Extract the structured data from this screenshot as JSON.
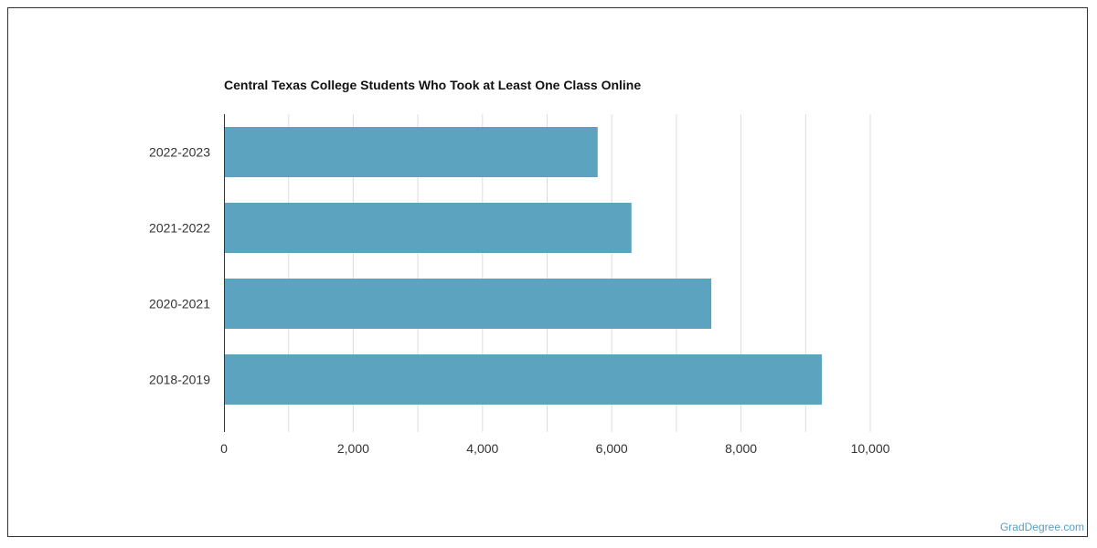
{
  "chart_data": {
    "type": "bar",
    "orientation": "horizontal",
    "title": "Central Texas College Students Who Took at Least One Class Online",
    "categories": [
      "2022-2023",
      "2021-2022",
      "2020-2021",
      "2018-2019"
    ],
    "values": [
      5782,
      6305,
      7540,
      9250
    ],
    "xlim": [
      0,
      10000
    ],
    "xticks": [
      0,
      2000,
      4000,
      6000,
      8000,
      10000
    ],
    "xtick_labels": [
      "0",
      "2,000",
      "4,000",
      "6,000",
      "8,000",
      "10,000"
    ],
    "grid": true,
    "bar_color": "#5ba3be",
    "grid_color": "#dddddd"
  },
  "footer": {
    "watermark": "GradDegree.com"
  }
}
